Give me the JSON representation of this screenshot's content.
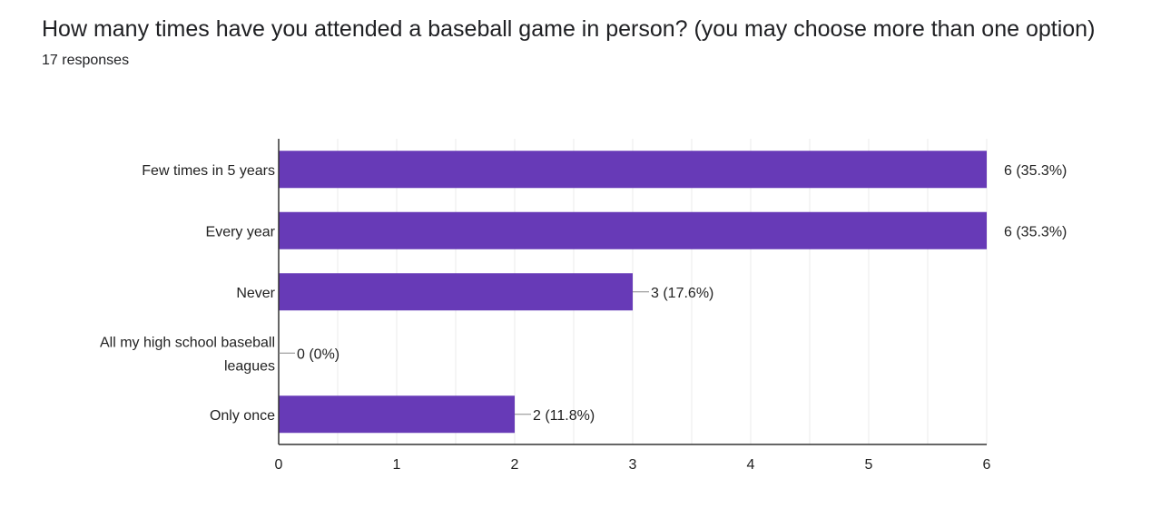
{
  "question": {
    "title": "How many times have you attended a baseball game in person? (you may choose more than one option)",
    "responses": "17 responses"
  },
  "colors": {
    "bar": "#673ab7",
    "grid": "#ebebeb",
    "axis": "#333333",
    "text": "#222222",
    "leader": "#888888"
  },
  "chart_data": {
    "type": "bar",
    "orientation": "horizontal",
    "title": "How many times have you attended a baseball game in person? (you may choose more than one option)",
    "categories": [
      [
        "Few times in 5 years"
      ],
      [
        "Every year"
      ],
      [
        "Never"
      ],
      [
        "All my high school baseball",
        "leagues"
      ],
      [
        "Only once"
      ]
    ],
    "values": [
      6,
      6,
      3,
      0,
      2
    ],
    "value_labels": [
      "6 (35.3%)",
      "6 (35.3%)",
      "3 (17.6%)",
      "0 (0%)",
      "2 (11.8%)"
    ],
    "xlim": [
      0,
      6
    ],
    "xticks": [
      "0",
      "1",
      "2",
      "3",
      "4",
      "5",
      "6"
    ],
    "xlabel": "",
    "ylabel": "",
    "grid": true,
    "legend": "none"
  }
}
